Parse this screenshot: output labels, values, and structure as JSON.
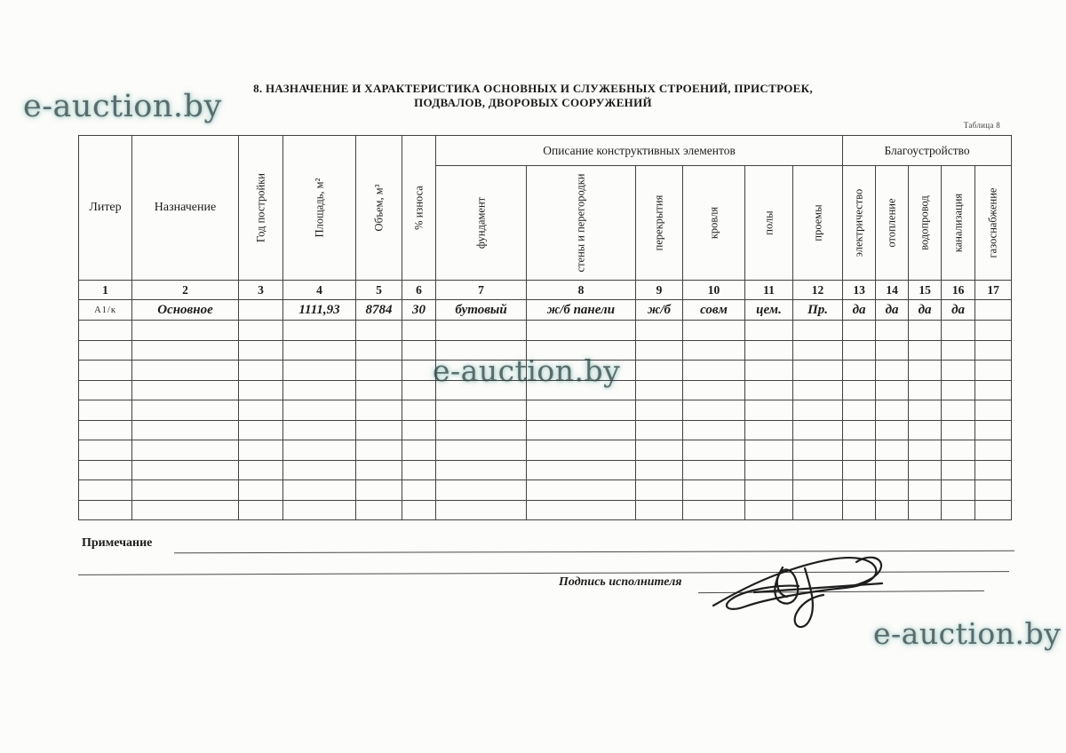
{
  "title": {
    "line1": "8. НАЗНАЧЕНИЕ И ХАРАКТЕРИСТИКА ОСНОВНЫХ И СЛУЖЕБНЫХ СТРОЕНИЙ, ПРИСТРОЕК,",
    "line2": "ПОДВАЛОВ, ДВОРОВЫХ СООРУЖЕНИЙ"
  },
  "table_caption": "Таблица 8",
  "watermark": {
    "text": "e-auction.by",
    "color": "#5a6b6e",
    "halo_color": "#bcd9d3"
  },
  "table": {
    "groups": {
      "construction": "Описание конструктивных элементов",
      "amenities": "Благоустройство"
    },
    "columns": [
      {
        "num": "1",
        "label": "Литер"
      },
      {
        "num": "2",
        "label": "Назначение"
      },
      {
        "num": "3",
        "label": "Год постройки"
      },
      {
        "num": "4",
        "label": "Площадь, м²"
      },
      {
        "num": "5",
        "label": "Объем, м³"
      },
      {
        "num": "6",
        "label": "% износа"
      },
      {
        "num": "7",
        "label": "фундамент"
      },
      {
        "num": "8",
        "label": "стены и перегородки"
      },
      {
        "num": "9",
        "label": "перекрытия"
      },
      {
        "num": "10",
        "label": "кровля"
      },
      {
        "num": "11",
        "label": "полы"
      },
      {
        "num": "12",
        "label": "проемы"
      },
      {
        "num": "13",
        "label": "электричество"
      },
      {
        "num": "14",
        "label": "отопление"
      },
      {
        "num": "15",
        "label": "водопровод"
      },
      {
        "num": "16",
        "label": "канализация"
      },
      {
        "num": "17",
        "label": "газоснабжение"
      }
    ],
    "data_row": [
      "А1/к",
      "Основное",
      "",
      "1111,93",
      "8784",
      "30",
      "бутовый",
      "ж/б панели",
      "ж/б",
      "совм",
      "цем.",
      "Пр.",
      "да",
      "да",
      "да",
      "да",
      ""
    ],
    "empty_rows": 10
  },
  "footer": {
    "note_label": "Примечание",
    "signature_label": "Подпись исполнителя"
  }
}
